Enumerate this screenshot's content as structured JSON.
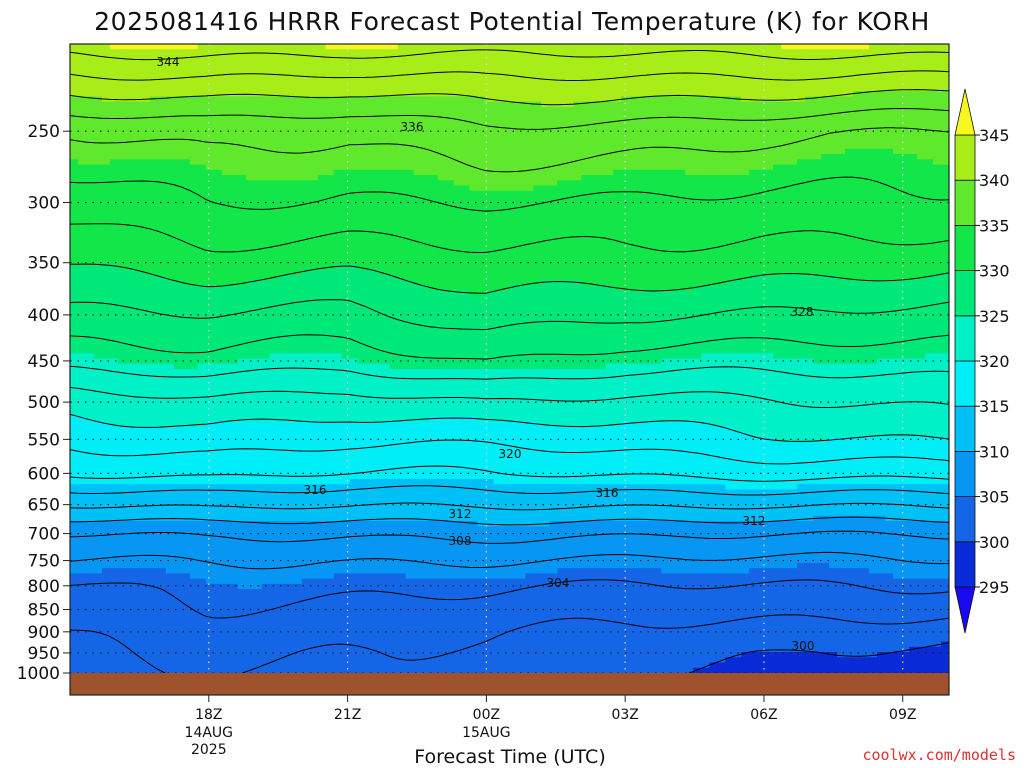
{
  "chart_data": {
    "type": "heatmap",
    "title": "2025081416 HRRR Forecast Potential Temperature (K) for KORH",
    "xlabel": "Forecast Time (UTC)",
    "ylabel": "",
    "y_scale": "log-pressure",
    "y_ticks": [
      "250",
      "300",
      "350",
      "400",
      "450",
      "500",
      "550",
      "600",
      "650",
      "700",
      "750",
      "800",
      "850",
      "900",
      "950",
      "1000"
    ],
    "x_ticks": [
      {
        "label": "18Z",
        "sub": [
          "14AUG",
          "2025"
        ]
      },
      {
        "label": "21Z",
        "sub": []
      },
      {
        "label": "00Z",
        "sub": [
          "15AUG"
        ]
      },
      {
        "label": "03Z",
        "sub": []
      },
      {
        "label": "06Z",
        "sub": []
      },
      {
        "label": "09Z",
        "sub": []
      }
    ],
    "x_range": [
      "2025-08-14 15Z",
      "2025-08-15 10Z"
    ],
    "ylim_hPa": [
      1000,
      200
    ],
    "grid": "dotted",
    "colorbar": {
      "levels": [
        295,
        300,
        305,
        310,
        315,
        320,
        325,
        330,
        335,
        340,
        345
      ],
      "labels": [
        "345",
        "340",
        "335",
        "330",
        "325",
        "320",
        "315",
        "310",
        "305",
        "300",
        "295"
      ],
      "colors": [
        "#1a0af0",
        "#0a2bd8",
        "#1466e6",
        "#0896f4",
        "#00c0f8",
        "#00eef8",
        "#00f0c8",
        "#00e878",
        "#12e648",
        "#60e82c",
        "#a8ec18",
        "#f8f820"
      ]
    },
    "contour_labels": [
      "344",
      "336",
      "328",
      "320",
      "316",
      "316",
      "312",
      "312",
      "308",
      "304",
      "300"
    ],
    "surface_color": "#a0522d",
    "profiles": [
      {
        "time": "15Z",
        "p1000": 301,
        "p950": 301.5,
        "p900": 302,
        "p850": 303,
        "p800": 304,
        "p750": 306,
        "p700": 308,
        "p650": 312,
        "p600": 316,
        "p550": 318.5,
        "p500": 321,
        "p450": 325,
        "p400": 327.5,
        "p350": 330,
        "p300": 333,
        "p250": 336,
        "p200": 345
      },
      {
        "time": "18Z",
        "p1000": 302,
        "p950": 302.5,
        "p900": 303,
        "p850": 303.8,
        "p800": 304.6,
        "p750": 306.2,
        "p700": 308.5,
        "p650": 312.6,
        "p600": 316.5,
        "p550": 319,
        "p500": 321.5,
        "p450": 325.5,
        "p400": 328,
        "p350": 331,
        "p300": 334,
        "p250": 337,
        "p200": 345
      },
      {
        "time": "21Z",
        "p1000": 302,
        "p950": 302.2,
        "p900": 302.6,
        "p850": 303.4,
        "p800": 304.4,
        "p750": 306,
        "p700": 308.4,
        "p650": 312.3,
        "p600": 316,
        "p550": 318.4,
        "p500": 320.8,
        "p450": 324.6,
        "p400": 327.6,
        "p350": 330.6,
        "p300": 333.6,
        "p250": 336.5,
        "p200": 345
      },
      {
        "time": "00Z",
        "p1000": 301.2,
        "p950": 301.8,
        "p900": 302.4,
        "p850": 303.2,
        "p800": 304.2,
        "p750": 306,
        "p700": 308.3,
        "p650": 312.2,
        "p600": 316,
        "p550": 318.6,
        "p500": 322,
        "p450": 326,
        "p400": 329,
        "p350": 331.5,
        "p300": 334,
        "p250": 337.5,
        "p200": 345
      },
      {
        "time": "03Z",
        "p1000": 300,
        "p950": 300.6,
        "p900": 301.6,
        "p850": 302.8,
        "p800": 304,
        "p750": 305.8,
        "p700": 308.2,
        "p650": 312.2,
        "p600": 316.2,
        "p550": 319,
        "p500": 321.6,
        "p450": 325,
        "p400": 328,
        "p350": 331.4,
        "p300": 334,
        "p250": 337,
        "p200": 345
      },
      {
        "time": "06Z",
        "p1000": 299.4,
        "p950": 300,
        "p900": 301.2,
        "p850": 302.6,
        "p800": 304,
        "p750": 305.8,
        "p700": 308.2,
        "p650": 312.2,
        "p600": 316.6,
        "p550": 319.6,
        "p500": 321.8,
        "p450": 325,
        "p400": 327.8,
        "p350": 330.8,
        "p300": 333.6,
        "p250": 336.5,
        "p200": 345
      },
      {
        "time": "10Z",
        "p1000": 298.8,
        "p950": 299.4,
        "p900": 300.8,
        "p850": 302.4,
        "p800": 304,
        "p750": 305.8,
        "p700": 308.2,
        "p650": 312.4,
        "p600": 316.8,
        "p550": 320,
        "p500": 322.2,
        "p450": 325,
        "p400": 327.6,
        "p350": 330.6,
        "p300": 333.4,
        "p250": 336,
        "p200": 345
      }
    ]
  },
  "credit": "coolwx.com/models",
  "credit_color": "#e03030"
}
